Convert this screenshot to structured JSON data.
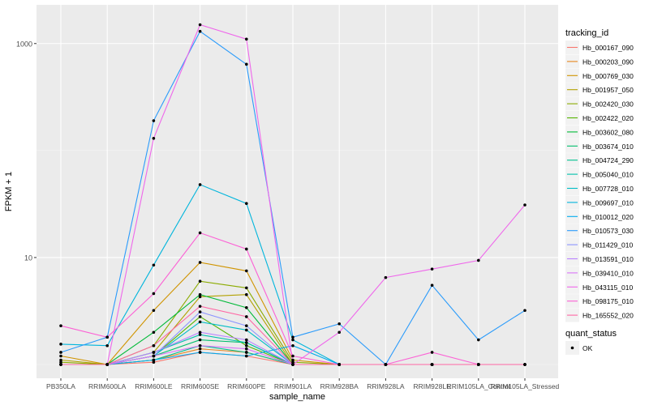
{
  "chart_data": {
    "type": "line",
    "title": "",
    "xlabel": "sample_name",
    "ylabel": "FPKM + 1",
    "y_scale": "log10",
    "ylim": [
      1,
      2000
    ],
    "y_ticks": [
      1000,
      10
    ],
    "y_tick_labels": [
      "1000",
      "10"
    ],
    "grid": true,
    "categories": [
      "PB350LA",
      "RRIM600LA",
      "RRIM600LE",
      "RRIM600SE",
      "RRIM600PE",
      "RRIM901LA",
      "RRIM928BA",
      "RRIM928LA",
      "RRIM928LE",
      "RRIM105LA_Control",
      "RRIM105LA_Stressed"
    ],
    "legend": {
      "position": "right",
      "color_title": "tracking_id",
      "shape_title": "quant_status",
      "shape_entries": [
        "OK"
      ]
    },
    "series": [
      {
        "name": "Hb_000167_090",
        "color": "#F8766D",
        "values": [
          1,
          1,
          1.05,
          1.3,
          1.2,
          1,
          1,
          1,
          1,
          1,
          1
        ]
      },
      {
        "name": "Hb_000203_090",
        "color": "#E7851E",
        "values": [
          1,
          1,
          1.1,
          1.4,
          1.3,
          1,
          1,
          1,
          1,
          1,
          1
        ]
      },
      {
        "name": "Hb_000769_030",
        "color": "#D09400",
        "values": [
          1.2,
          1,
          3.2,
          9,
          7.5,
          1.1,
          1,
          1,
          1,
          1,
          1
        ]
      },
      {
        "name": "Hb_001957_050",
        "color": "#B2A100",
        "values": [
          1.1,
          1,
          1.3,
          4.3,
          4.5,
          1,
          1,
          1,
          1,
          1,
          1
        ]
      },
      {
        "name": "Hb_002420_030",
        "color": "#8BAB00",
        "values": [
          1.05,
          1,
          1.5,
          6,
          5.2,
          1.05,
          1,
          1,
          1,
          1,
          1
        ]
      },
      {
        "name": "Hb_002422_020",
        "color": "#55B400",
        "values": [
          1,
          1,
          1.2,
          2.8,
          1.5,
          1,
          1,
          1,
          1,
          1,
          1
        ]
      },
      {
        "name": "Hb_003602_080",
        "color": "#00BA38",
        "values": [
          1,
          1,
          2,
          4.5,
          3.4,
          1,
          1,
          1,
          1,
          1,
          1
        ]
      },
      {
        "name": "Hb_003674_010",
        "color": "#00BE6C",
        "values": [
          1,
          1,
          1.2,
          1.7,
          1.6,
          1,
          1,
          1,
          1,
          1,
          1
        ]
      },
      {
        "name": "Hb_004724_290",
        "color": "#00C08E",
        "values": [
          1,
          1,
          1.1,
          1.5,
          1.3,
          1,
          1,
          1,
          1,
          1,
          1
        ]
      },
      {
        "name": "Hb_005040_010",
        "color": "#00C0AC",
        "values": [
          1,
          1,
          1.3,
          1.9,
          1.6,
          1,
          1,
          1,
          1,
          1,
          1
        ]
      },
      {
        "name": "Hb_007728_010",
        "color": "#00BDC6",
        "values": [
          1,
          1,
          1.2,
          2.5,
          2.1,
          1,
          1,
          1,
          1,
          1,
          1
        ]
      },
      {
        "name": "Hb_009697_010",
        "color": "#00B5DC",
        "values": [
          1.55,
          1.5,
          8.5,
          48,
          32,
          1.7,
          1,
          1,
          1,
          1,
          1
        ]
      },
      {
        "name": "Hb_010012_020",
        "color": "#00ABEE",
        "values": [
          1,
          1,
          1.1,
          1.3,
          1.2,
          1.5,
          1,
          1,
          1,
          1,
          1
        ]
      },
      {
        "name": "Hb_010573_030",
        "color": "#2A9BFB",
        "values": [
          1.3,
          1.8,
          190,
          1300,
          640,
          1.8,
          2.4,
          1,
          5.5,
          1.7,
          3.2
        ]
      },
      {
        "name": "Hb_011429_010",
        "color": "#8B93FF",
        "values": [
          1,
          1,
          1.2,
          3.1,
          2.3,
          1,
          1,
          1,
          1,
          1,
          1
        ]
      },
      {
        "name": "Hb_013591_010",
        "color": "#B983FF",
        "values": [
          1,
          1,
          1.3,
          2,
          1.7,
          1,
          1,
          1,
          1,
          1,
          1
        ]
      },
      {
        "name": "Hb_039410_010",
        "color": "#DA74F7",
        "values": [
          1,
          1,
          1.2,
          1.5,
          1.4,
          1,
          1,
          1,
          1,
          1,
          1
        ]
      },
      {
        "name": "Hb_043115_010",
        "color": "#EF67EB",
        "values": [
          1,
          1,
          130,
          1500,
          1100,
          1,
          2,
          6.5,
          7.8,
          9.4,
          31
        ]
      },
      {
        "name": "Hb_098175_010",
        "color": "#FC61D5",
        "values": [
          2.3,
          1.8,
          4.6,
          17,
          12,
          1.2,
          1,
          1,
          1.3,
          1,
          1
        ]
      },
      {
        "name": "Hb_165552_020",
        "color": "#FF67A4",
        "values": [
          1,
          1,
          1.5,
          3.5,
          2.8,
          1,
          1,
          1,
          1,
          1,
          1
        ]
      }
    ]
  }
}
